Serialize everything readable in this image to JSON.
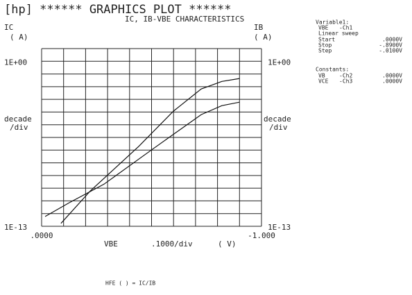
{
  "chart_data": {
    "type": "line",
    "title": "[hp] ****** GRAPHICS PLOT ******",
    "subtitle": "IC, IB-VBE CHARACTERISTICS",
    "y_label": "IC",
    "y_unit": "( A)",
    "y2_label": "IB",
    "y2_unit": "( A)",
    "y_scale_label": "decade\n/div",
    "y2_scale_label": "decade\n/div",
    "x_label": "VBE",
    "x_scale_label": ".1000/div",
    "x_unit": "( V)",
    "log_y": true,
    "color": "#111111",
    "xlim": [
      0,
      -1
    ],
    "xticks": [
      {
        "value": 0,
        "label": ".0000"
      },
      {
        "value": -1,
        "label": "-1.000"
      }
    ],
    "ylim": [
      1e-13,
      10
    ],
    "yticks": [
      {
        "value": 1,
        "label": "1E+00"
      },
      {
        "value": 1e-13,
        "label": "1E-13"
      }
    ],
    "y2ticks": [
      {
        "value": 1,
        "label": "1E+00"
      },
      {
        "value": 1e-13,
        "label": "1E-13"
      }
    ],
    "series": [
      {
        "name": "IC",
        "x": [
          -0.088,
          -0.221,
          -0.442,
          -0.6,
          -0.726,
          -0.82,
          -0.9
        ],
        "values": [
          1.7e-13,
          6e-11,
          2e-07,
          0.00012,
          0.0066,
          0.026,
          0.044
        ]
      },
      {
        "name": "IB",
        "axis": "y2",
        "x": [
          -0.016,
          -0.126,
          -0.284,
          -0.505,
          -0.726,
          -0.82,
          -0.9
        ],
        "values": [
          5.9e-13,
          7.2e-12,
          2.1e-10,
          1.2e-07,
          6.3e-05,
          0.00032,
          0.0006
        ]
      }
    ]
  },
  "panel": {
    "variable_title": "Variable1:",
    "var_name": "VBE",
    "var_chan": "-Ch1",
    "sweep": "Linear sweep",
    "rows": [
      [
        "Start",
        ".0000V"
      ],
      [
        "Stop",
        "-.8900V"
      ],
      [
        "Step",
        "-.0100V"
      ]
    ],
    "constants_title": "Constants:",
    "constants": [
      [
        "VB",
        "-Ch2",
        ".0000V"
      ],
      [
        "VCE",
        "-Ch3",
        ".0000V"
      ]
    ]
  },
  "footer": "HFE ( ) = IC/IB"
}
